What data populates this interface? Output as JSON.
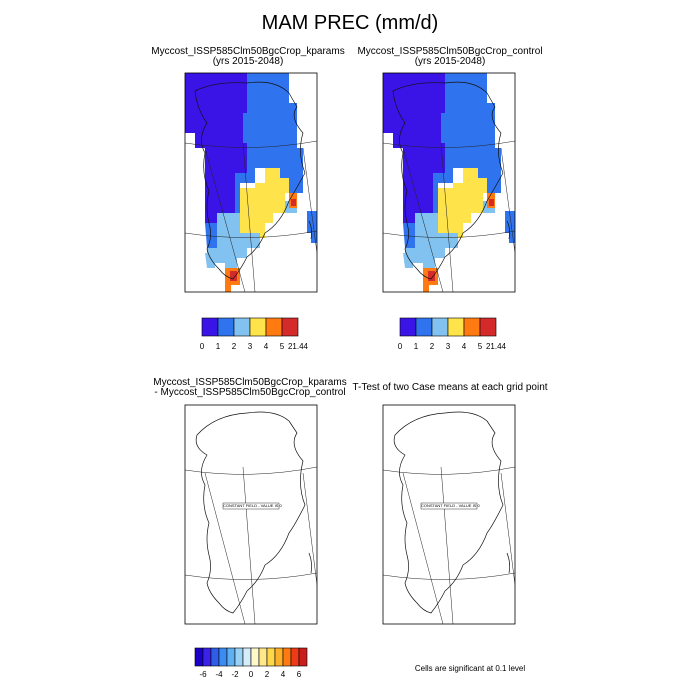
{
  "figure": {
    "title": "MAM PREC (mm/d)"
  },
  "panels": {
    "p1": {
      "title_line1": "Myccost_ISSP585Clm50BgcCrop_kparams",
      "title_line2": "(yrs 2015-2048)"
    },
    "p2": {
      "title_line1": "Myccost_ISSP585Clm50BgcCrop_control",
      "title_line2": "(yrs 2015-2048)"
    },
    "p3": {
      "title_line1": "Myccost_ISSP585Clm50BgcCrop_kparams",
      "title_line2": "- Myccost_ISSP585Clm50BgcCrop_control",
      "field_note": "CONSTANT FIELD - VALUE IS 0"
    },
    "p4": {
      "title_line1": "T-Test of two Case means at each grid point",
      "field_note": "CONSTANT FIELD - VALUE IS 0",
      "footnote": "Cells are significant at 0.1 level"
    }
  },
  "colorbars": {
    "abs": {
      "colors": [
        "#3a14e6",
        "#2f74ee",
        "#82c2f0",
        "#ffe34a",
        "#ff7a10",
        "#d42a2a"
      ],
      "labels": [
        "0",
        "1",
        "2",
        "3",
        "4",
        "5",
        "21.44"
      ]
    },
    "diff": {
      "colors": [
        "#1a00c8",
        "#3a22e8",
        "#2e5ee8",
        "#3a8cf0",
        "#5eb0f2",
        "#9ad2f5",
        "#d6ecfa",
        "#fff8c8",
        "#ffe88a",
        "#ffd84a",
        "#ffb02a",
        "#ff7a10",
        "#ef3a1a",
        "#c81e1e"
      ],
      "labels": [
        "-6",
        "-4",
        "-2",
        "0",
        "2",
        "4",
        "6"
      ]
    }
  }
}
